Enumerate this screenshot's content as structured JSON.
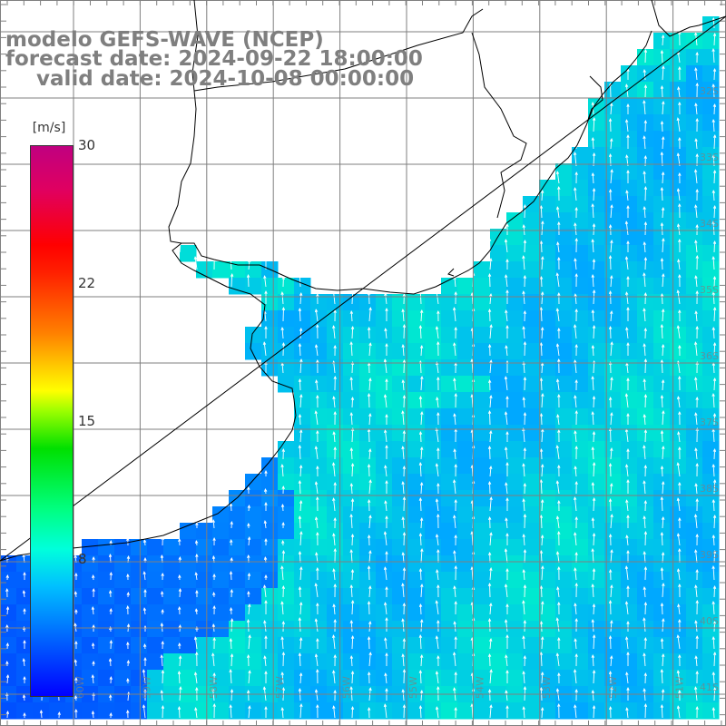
{
  "header": {
    "line1": "modelo GEFS-WAVE (NCEP)",
    "line2": "forecast date: 2024-09-22 18:00:00",
    "line3": "valid date: 2024-10-08 00:00:00"
  },
  "colorbar": {
    "unit": "[m/s]",
    "ticks": [
      "30",
      "22",
      "15",
      "8"
    ],
    "colors": [
      "#0000ff",
      "#00c0ff",
      "#00ffdc",
      "#00e000",
      "#ffff00",
      "#ff8000",
      "#ff0000",
      "#c00080"
    ]
  },
  "map": {
    "lat_labels": [
      "32S",
      "33S",
      "34S",
      "35S",
      "36S",
      "37S",
      "38S",
      "39S",
      "40S",
      "41S"
    ],
    "lon_labels": [
      "60W",
      "59W",
      "58W",
      "57W",
      "56W",
      "55W",
      "54W",
      "53W",
      "52W",
      "51W"
    ],
    "wind_direction": "from south",
    "colors": {
      "land": "#ffffff",
      "coast": "#000000",
      "grid": "#7f7f7f",
      "arrows": "#ffffff",
      "low_wind": "#0050ff",
      "mid_wind": "#00a8ff",
      "high_wind": "#00ffc0"
    }
  }
}
